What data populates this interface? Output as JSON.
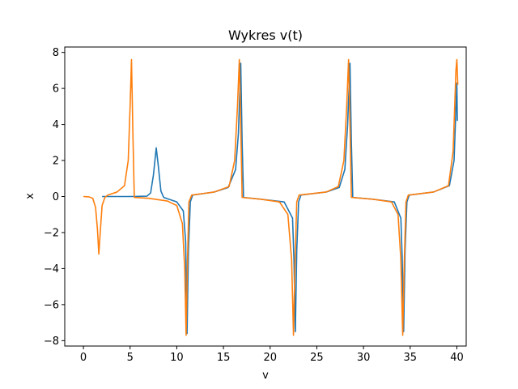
{
  "chart_data": {
    "type": "line",
    "title": "Wykres v(t)",
    "xlabel": "v",
    "ylabel": "x",
    "xlim": [
      -2,
      41
    ],
    "ylim": [
      -8.3,
      8.3
    ],
    "grid": false,
    "x_ticks": [
      0,
      5,
      10,
      15,
      20,
      25,
      30,
      35,
      40
    ],
    "x_tick_labels": [
      "0",
      "5",
      "10",
      "15",
      "20",
      "25",
      "30",
      "35",
      "40"
    ],
    "y_ticks": [
      -8,
      -6,
      -4,
      -2,
      0,
      2,
      4,
      6,
      8
    ],
    "y_tick_labels": [
      "−8",
      "−6",
      "−4",
      "−2",
      "0",
      "2",
      "4",
      "6",
      "8"
    ],
    "series": [
      {
        "color": "#1f77b4",
        "points": [
          [
            2.0,
            0.0
          ],
          [
            5.0,
            0.0
          ],
          [
            6.8,
            0.02
          ],
          [
            7.2,
            0.2
          ],
          [
            7.5,
            1.2
          ],
          [
            7.8,
            2.7
          ],
          [
            8.0,
            1.8
          ],
          [
            8.3,
            0.3
          ],
          [
            8.6,
            -0.05
          ],
          [
            10.0,
            -0.3
          ],
          [
            10.7,
            -0.8
          ],
          [
            10.95,
            -2.5
          ],
          [
            11.1,
            -7.6
          ],
          [
            11.25,
            -3.0
          ],
          [
            11.45,
            -0.3
          ],
          [
            11.7,
            0.08
          ],
          [
            14.0,
            0.25
          ],
          [
            15.5,
            0.5
          ],
          [
            16.3,
            1.5
          ],
          [
            16.6,
            3.5
          ],
          [
            16.85,
            7.4
          ],
          [
            17.0,
            3.0
          ],
          [
            17.15,
            -0.05
          ],
          [
            19.0,
            -0.15
          ],
          [
            21.5,
            -0.3
          ],
          [
            22.4,
            -1.2
          ],
          [
            22.55,
            -3.5
          ],
          [
            22.7,
            -7.5
          ],
          [
            22.85,
            -3.0
          ],
          [
            23.05,
            -0.3
          ],
          [
            23.3,
            0.08
          ],
          [
            26.0,
            0.25
          ],
          [
            27.4,
            0.5
          ],
          [
            28.0,
            1.5
          ],
          [
            28.3,
            4.0
          ],
          [
            28.55,
            7.4
          ],
          [
            28.7,
            3.0
          ],
          [
            28.85,
            -0.05
          ],
          [
            31.0,
            -0.15
          ],
          [
            33.3,
            -0.3
          ],
          [
            34.0,
            -1.2
          ],
          [
            34.15,
            -3.5
          ],
          [
            34.3,
            -7.5
          ],
          [
            34.45,
            -3.0
          ],
          [
            34.65,
            -0.3
          ],
          [
            34.9,
            0.08
          ],
          [
            37.5,
            0.25
          ],
          [
            39.2,
            0.6
          ],
          [
            39.7,
            2.0
          ],
          [
            40.0,
            6.3
          ],
          [
            40.05,
            4.2
          ]
        ]
      },
      {
        "color": "#ff7f0e",
        "points": [
          [
            0.0,
            0.0
          ],
          [
            0.6,
            -0.02
          ],
          [
            1.0,
            -0.1
          ],
          [
            1.3,
            -0.6
          ],
          [
            1.5,
            -1.8
          ],
          [
            1.65,
            -3.2
          ],
          [
            1.8,
            -2.0
          ],
          [
            2.0,
            -0.5
          ],
          [
            2.3,
            -0.05
          ],
          [
            2.6,
            0.08
          ],
          [
            3.6,
            0.25
          ],
          [
            4.4,
            0.6
          ],
          [
            4.8,
            2.0
          ],
          [
            5.0,
            5.0
          ],
          [
            5.15,
            7.6
          ],
          [
            5.3,
            3.5
          ],
          [
            5.45,
            -0.05
          ],
          [
            7.0,
            -0.1
          ],
          [
            9.0,
            -0.25
          ],
          [
            10.0,
            -0.5
          ],
          [
            10.6,
            -1.5
          ],
          [
            10.85,
            -4.0
          ],
          [
            11.0,
            -7.7
          ],
          [
            11.15,
            -3.5
          ],
          [
            11.3,
            -0.3
          ],
          [
            11.6,
            0.08
          ],
          [
            14.0,
            0.25
          ],
          [
            15.6,
            0.55
          ],
          [
            16.2,
            2.0
          ],
          [
            16.5,
            5.0
          ],
          [
            16.7,
            7.6
          ],
          [
            16.85,
            4.0
          ],
          [
            17.0,
            -0.05
          ],
          [
            19.0,
            -0.15
          ],
          [
            21.0,
            -0.3
          ],
          [
            21.9,
            -1.0
          ],
          [
            22.3,
            -3.5
          ],
          [
            22.5,
            -7.7
          ],
          [
            22.65,
            -4.0
          ],
          [
            22.85,
            -0.3
          ],
          [
            23.1,
            0.08
          ],
          [
            26.0,
            0.25
          ],
          [
            27.3,
            0.55
          ],
          [
            27.9,
            2.0
          ],
          [
            28.2,
            5.0
          ],
          [
            28.4,
            7.6
          ],
          [
            28.55,
            4.0
          ],
          [
            28.7,
            -0.05
          ],
          [
            31.0,
            -0.15
          ],
          [
            33.0,
            -0.3
          ],
          [
            33.7,
            -1.0
          ],
          [
            34.0,
            -3.5
          ],
          [
            34.2,
            -7.7
          ],
          [
            34.35,
            -4.0
          ],
          [
            34.55,
            -0.3
          ],
          [
            34.8,
            0.08
          ],
          [
            37.5,
            0.25
          ],
          [
            39.1,
            0.6
          ],
          [
            39.6,
            2.5
          ],
          [
            39.9,
            7.0
          ],
          [
            40.0,
            7.6
          ],
          [
            40.1,
            6.2
          ]
        ]
      }
    ]
  }
}
